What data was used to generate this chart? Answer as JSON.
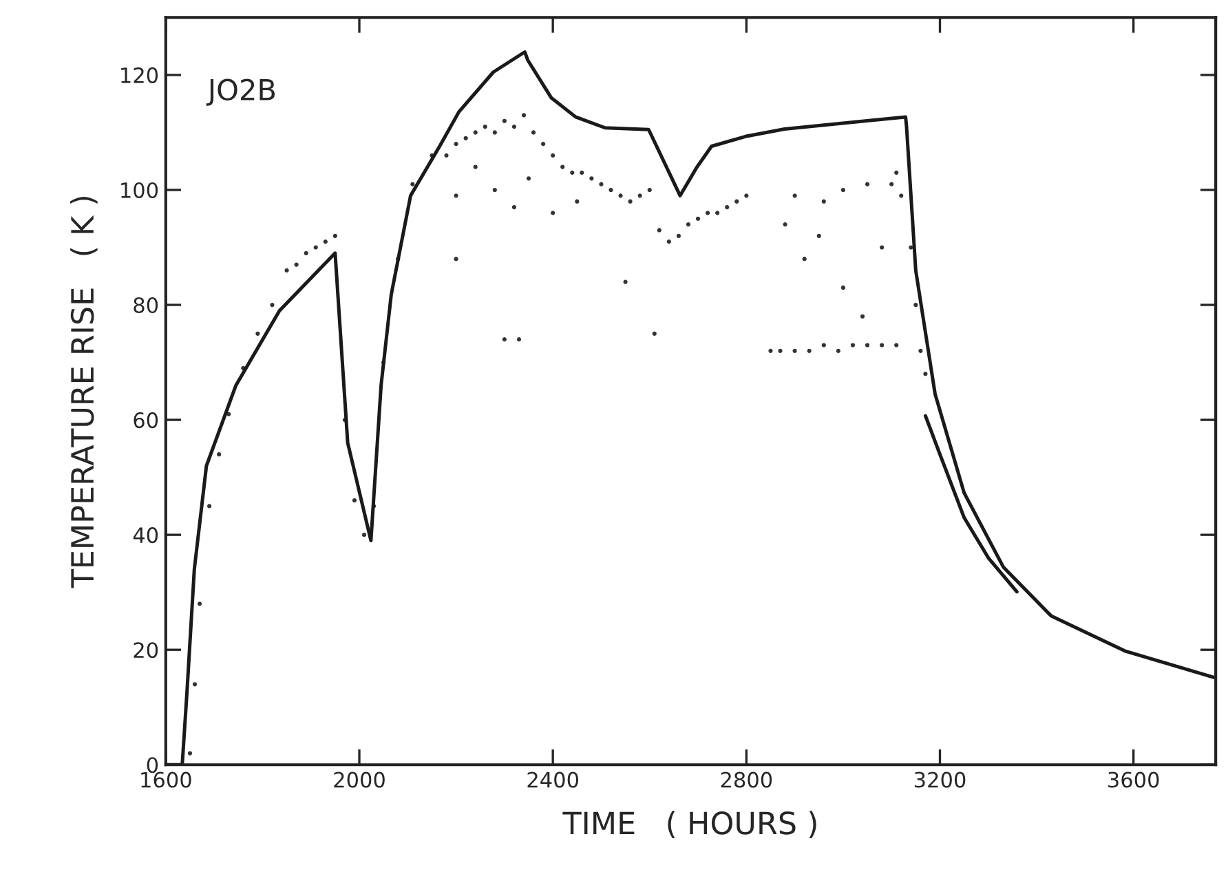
{
  "chart_data": {
    "type": "line",
    "xlabel": "TIME   ( HOURS )",
    "ylabel": "TEMPERATURE RISE   ( K )",
    "annotations": [
      "JO2B"
    ],
    "xlim": [
      1600,
      3770
    ],
    "ylim": [
      0,
      130
    ],
    "xticks": [
      1600,
      2000,
      2400,
      2800,
      3200,
      3600
    ],
    "yticks": [
      0,
      20,
      40,
      60,
      80,
      100,
      120
    ],
    "grid": false,
    "legend": false,
    "series": [
      {
        "color": "#1a1a1a",
        "x": [
          1600,
          1634,
          1644,
          1659,
          1684,
          1745,
          1835,
          1950,
          1976,
          2024,
          2045,
          2066,
          2106,
          2166,
          2206,
          2277,
          2342,
          2348,
          2397,
          2447,
          2508,
          2598,
          2663,
          2698,
          2728,
          2798,
          2879,
          3129,
          3131,
          3150,
          3190,
          3250,
          3331,
          3430,
          3582,
          3770
        ],
        "values": [
          0,
          0,
          12.9,
          34,
          52,
          66,
          79,
          89,
          56,
          39,
          66,
          81.8,
          99,
          107.6,
          113.6,
          120.5,
          124,
          122.6,
          116,
          112.7,
          110.8,
          110.5,
          99,
          104,
          107.6,
          109.3,
          110.6,
          112.7,
          111,
          86,
          64.5,
          47.3,
          34.4,
          25.9,
          19.8,
          15.1
        ]
      },
      {
        "color": "#1a1a1a",
        "x": [
          3170,
          3200,
          3250,
          3300,
          3359
        ],
        "values": [
          60.7,
          54,
          43,
          36,
          30.1
        ]
      },
      {
        "type": "scatter",
        "color": "#333333",
        "x": [
          1650,
          1660,
          1670,
          1690,
          1710,
          1730,
          1760,
          1790,
          1820,
          1850,
          1870,
          1890,
          1910,
          1930,
          1950,
          1970,
          1990,
          2010,
          2030,
          2050,
          2080,
          2110,
          2150,
          2180,
          2200,
          2220,
          2240,
          2260,
          2280,
          2300,
          2320,
          2340,
          2360,
          2380,
          2400,
          2420,
          2440,
          2460,
          2480,
          2500,
          2520,
          2540,
          2560,
          2580,
          2600,
          2620,
          2640,
          2660,
          2680,
          2700,
          2720,
          2740,
          2760,
          2780,
          2800,
          2200,
          2240,
          2280,
          2320,
          2350,
          2400,
          2450,
          2200,
          2300,
          2330,
          2550,
          2610,
          2850,
          2870,
          2900,
          2930,
          2960,
          2990,
          3020,
          3050,
          3080,
          3110,
          2880,
          2920,
          2960,
          3000,
          3040,
          3080,
          2900,
          2950,
          3000,
          3050,
          3100,
          3110,
          3120,
          3140,
          3150,
          3160,
          3170
        ],
        "values": [
          2,
          14,
          28,
          45,
          54,
          61,
          69,
          75,
          80,
          86,
          87,
          89,
          90,
          91,
          92,
          60,
          46,
          40,
          45,
          70,
          88,
          101,
          106,
          106,
          108,
          109,
          110,
          111,
          110,
          112,
          111,
          113,
          110,
          108,
          106,
          104,
          103,
          103,
          102,
          101,
          100,
          99,
          98,
          99,
          100,
          93,
          91,
          92,
          94,
          95,
          96,
          96,
          97,
          98,
          99,
          99,
          104,
          100,
          97,
          102,
          96,
          98,
          88,
          74,
          74,
          84,
          75,
          72,
          72,
          72,
          72,
          73,
          72,
          73,
          73,
          73,
          73,
          94,
          88,
          98,
          83,
          78,
          90,
          99,
          92,
          100,
          101,
          101,
          103,
          99,
          90,
          80,
          72,
          68
        ]
      }
    ]
  }
}
